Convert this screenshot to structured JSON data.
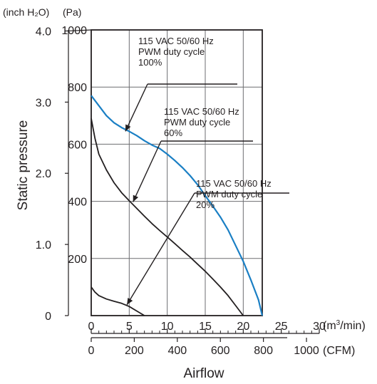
{
  "chart_data": {
    "type": "line",
    "title": "",
    "xlabel": "Airflow",
    "ylabel": "Static pressure",
    "x_unit_primary": "(m³/min)",
    "x_unit_secondary": "(CFM)",
    "y_unit_left": "(inch H₂O)",
    "y_unit_right": "(Pa)",
    "xlim": [
      0,
      30
    ],
    "ylim": [
      0,
      1000
    ],
    "grid": true,
    "x_ticks_primary": [
      "0",
      "5",
      "10",
      "15",
      "20",
      "25",
      "30"
    ],
    "x_ticks_secondary": [
      "0",
      "200",
      "400",
      "600",
      "800",
      "1000"
    ],
    "y_ticks_inch": [
      "0",
      "1.0",
      "2.0",
      "3.0",
      "4.0"
    ],
    "y_ticks_pa": [
      "200",
      "400",
      "600",
      "800",
      "1000"
    ],
    "series": [
      {
        "name": "115 VAC 50/60 Hz PWM duty cycle 100%",
        "label_lines": [
          "115 VAC  50/60 Hz",
          "PWM duty cycle",
          "100%"
        ],
        "color": "#1a7fc4",
        "x": [
          0,
          1,
          2,
          3,
          4,
          5,
          6,
          7,
          8,
          9,
          10,
          11,
          12,
          13,
          14,
          15,
          16,
          17,
          18,
          19,
          20,
          21,
          22,
          22.5
        ],
        "y": [
          770,
          735,
          700,
          675,
          658,
          645,
          630,
          612,
          597,
          585,
          565,
          543,
          518,
          490,
          458,
          420,
          383,
          345,
          300,
          245,
          190,
          125,
          55,
          0
        ]
      },
      {
        "name": "115 VAC 50/60 Hz PWM duty cycle 60%",
        "label_lines": [
          "115 VAC  50/60 Hz",
          "PWM duty cycle",
          "60%"
        ],
        "color": "#231f20",
        "x": [
          0,
          0.5,
          1,
          2,
          3,
          4,
          5,
          6,
          7,
          8,
          9,
          10,
          11,
          12,
          13,
          14,
          15,
          16,
          17,
          18,
          19,
          20
        ],
        "y": [
          690,
          620,
          565,
          510,
          465,
          430,
          402,
          375,
          348,
          322,
          298,
          275,
          252,
          228,
          205,
          180,
          155,
          128,
          100,
          70,
          35,
          0
        ]
      },
      {
        "name": "115 VAC 50/60 Hz PWM duty cycle 20%",
        "label_lines": [
          "115 VAC  50/60 Hz",
          "PWM duty cycle",
          "20%"
        ],
        "color": "#231f20",
        "x": [
          0,
          0.5,
          1,
          2,
          3,
          4,
          5,
          6,
          7
        ],
        "y": [
          100,
          82,
          70,
          58,
          50,
          43,
          32,
          16,
          0
        ]
      }
    ],
    "pointer_targets": [
      {
        "series": 0,
        "x": 4.5,
        "y": 645
      },
      {
        "series": 1,
        "x": 5.5,
        "y": 398
      },
      {
        "series": 2,
        "x": 4.7,
        "y": 38
      }
    ]
  }
}
